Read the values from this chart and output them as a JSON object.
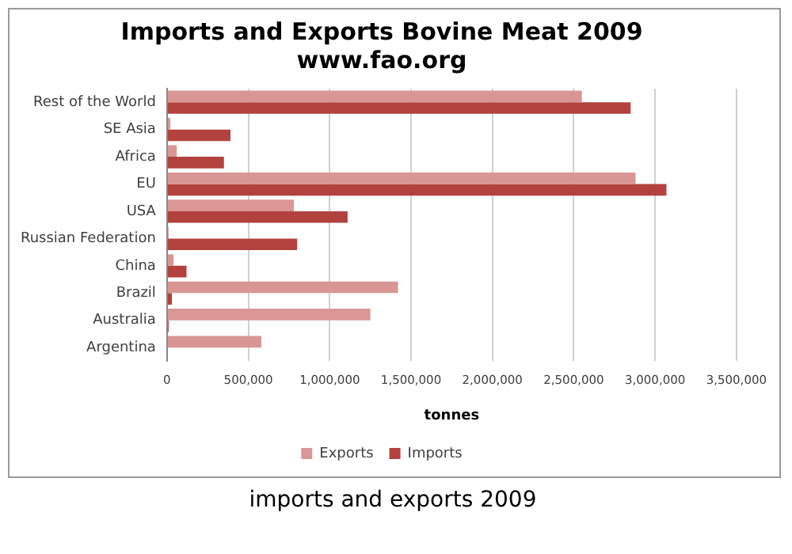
{
  "chart_data": {
    "type": "bar",
    "orientation": "horizontal",
    "title": "Imports and Exports Bovine Meat 2009",
    "subtitle": "www.fao.org",
    "xlabel": "tonnes",
    "categories": [
      "Rest of the World",
      "SE Asia",
      "Africa",
      "EU",
      "USA",
      "Russian Federation",
      "China",
      "Brazil",
      "Australia",
      "Argentina"
    ],
    "series": [
      {
        "name": "Exports",
        "color": "#d99694",
        "values": [
          2550000,
          20000,
          60000,
          2880000,
          780000,
          10000,
          40000,
          1420000,
          1250000,
          580000
        ]
      },
      {
        "name": "Imports",
        "color": "#b3423f",
        "values": [
          2850000,
          390000,
          350000,
          3070000,
          1110000,
          800000,
          120000,
          30000,
          10000,
          0
        ]
      }
    ],
    "xlim": [
      0,
      3500000
    ],
    "xticks": [
      {
        "value": 0,
        "label": "0"
      },
      {
        "value": 500000,
        "label": "500,000"
      },
      {
        "value": 1000000,
        "label": "1,000,000"
      },
      {
        "value": 1500000,
        "label": "1,500,000"
      },
      {
        "value": 2000000,
        "label": "2,000,000"
      },
      {
        "value": 2500000,
        "label": "2,500,000"
      },
      {
        "value": 3000000,
        "label": "3,000,000"
      },
      {
        "value": 3500000,
        "label": "3,500,000"
      }
    ],
    "grid": "x",
    "legend": "bottom",
    "annotations": [
      "imports and exports 2009"
    ]
  }
}
